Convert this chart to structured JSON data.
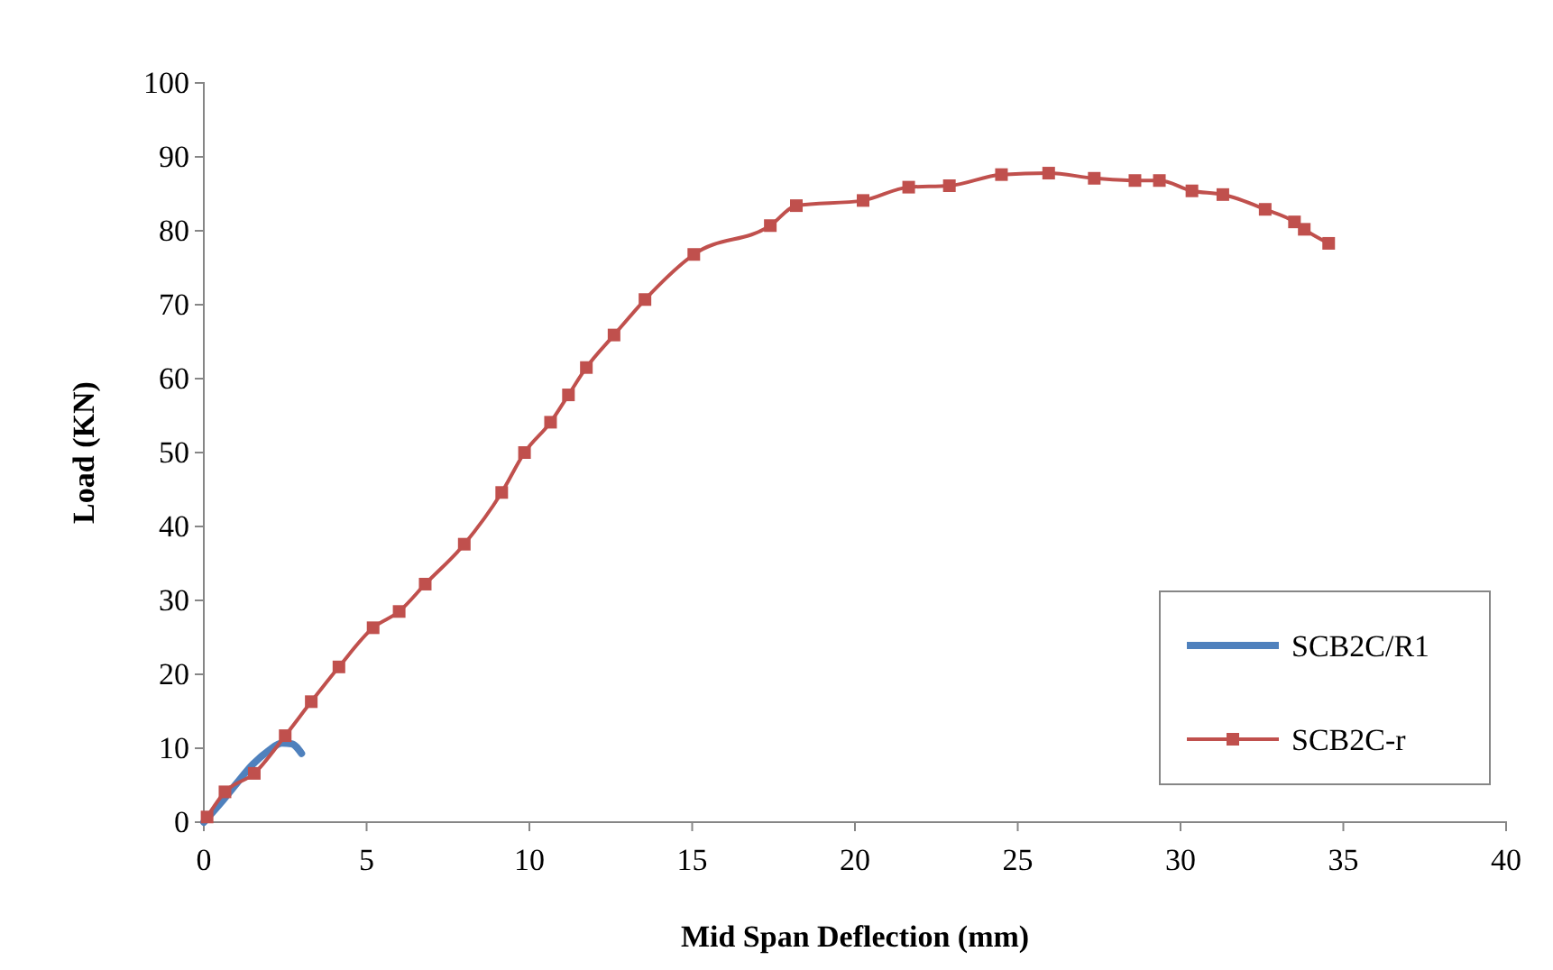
{
  "chart_data": {
    "type": "line",
    "xlabel": "Mid Span Deflection (mm)",
    "ylabel": "Load (KN)",
    "xlim": [
      0,
      40
    ],
    "xticks": [
      0,
      5,
      10,
      15,
      20,
      25,
      30,
      35,
      40
    ],
    "ylim": [
      0,
      100
    ],
    "yticks": [
      0,
      10,
      20,
      30,
      40,
      50,
      60,
      70,
      80,
      90,
      100
    ],
    "grid": false,
    "legend": "bottom right",
    "series": [
      {
        "name": "SCB2C/R1",
        "color": "#4f81bd",
        "marker": "none",
        "x": [
          0,
          0.5,
          1,
          1.5,
          2,
          2.4,
          2.7,
          3.0
        ],
        "values": [
          0,
          2.5,
          5.2,
          7.8,
          9.7,
          10.7,
          10.6,
          9.3
        ]
      },
      {
        "name": "SCB2C-r",
        "color": "#c0504d",
        "marker": "square",
        "x": [
          0.1,
          0.65,
          1.55,
          2.5,
          3.3,
          4.15,
          5.2,
          6.0,
          6.8,
          8.0,
          9.15,
          9.85,
          10.65,
          11.2,
          11.75,
          12.6,
          13.55,
          15.05,
          17.4,
          18.2,
          20.25,
          21.65,
          22.9,
          24.5,
          25.95,
          27.35,
          28.6,
          29.35,
          30.35,
          31.3,
          32.6,
          33.5,
          33.8,
          34.55
        ],
        "values": [
          0.7,
          4.1,
          6.6,
          11.7,
          16.3,
          21,
          26.3,
          28.5,
          32.2,
          37.6,
          44.6,
          50,
          54.1,
          57.8,
          61.5,
          65.9,
          70.7,
          76.8,
          80.7,
          83.4,
          84.1,
          85.9,
          86.1,
          87.6,
          87.8,
          87.1,
          86.8,
          86.8,
          85.4,
          84.9,
          82.9,
          81.2,
          80.2,
          78.3
        ]
      }
    ]
  }
}
